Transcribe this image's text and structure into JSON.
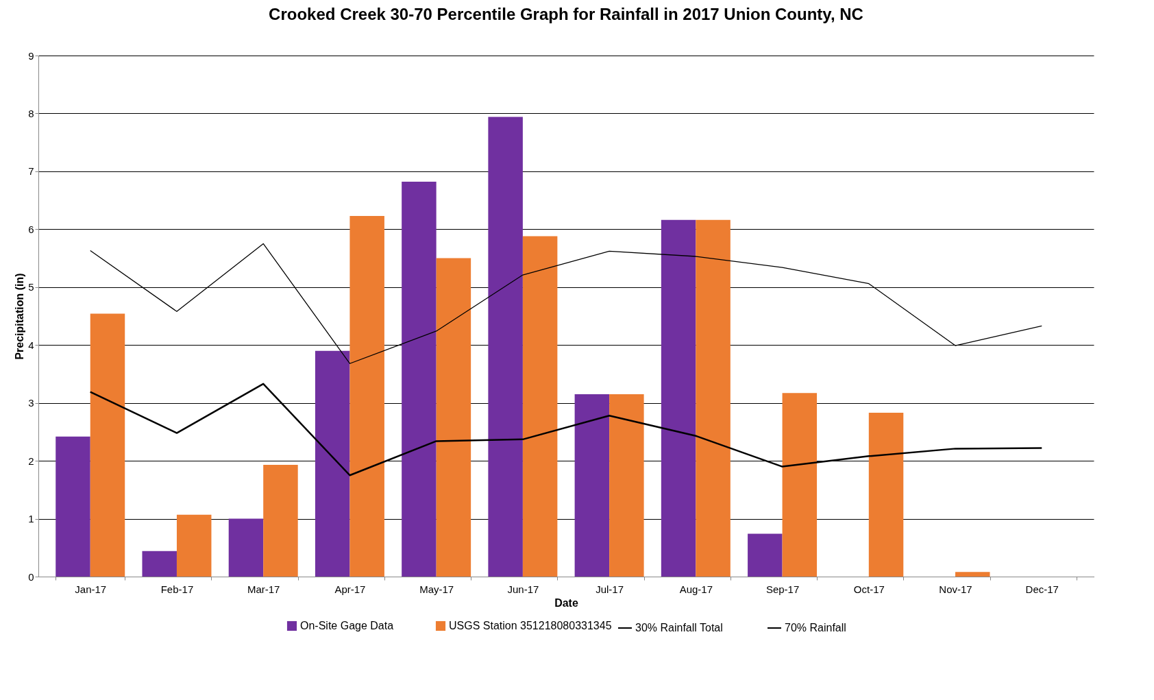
{
  "chart_data": {
    "type": "bar",
    "title": "Crooked Creek 30-70 Percentile Graph for Rainfall in 2017 Union County, NC",
    "xlabel": "Date",
    "ylabel": "Precipitation (in)",
    "categories": [
      "Jan-17",
      "Feb-17",
      "Mar-17",
      "Apr-17",
      "May-17",
      "Jun-17",
      "Jul-17",
      "Aug-17",
      "Sep-17",
      "Oct-17",
      "Nov-17",
      "Dec-17"
    ],
    "series": [
      {
        "name": "On-Site Gage Data",
        "color": "#7030a0",
        "values": [
          2.42,
          0.44,
          1.0,
          3.9,
          6.82,
          7.94,
          3.15,
          6.16,
          0.74,
          null,
          null,
          null
        ]
      },
      {
        "name": "USGS Station 351218080331345",
        "color": "#ed7d31",
        "values": [
          4.54,
          1.07,
          1.93,
          6.23,
          5.5,
          5.88,
          3.15,
          6.16,
          3.17,
          2.83,
          0.08,
          null
        ]
      },
      {
        "name": "30% Rainfall Total",
        "type": "line",
        "color": "#000000",
        "values": [
          3.19,
          2.48,
          3.33,
          1.75,
          2.34,
          2.37,
          2.78,
          2.43,
          1.9,
          2.08,
          2.21,
          2.22
        ]
      },
      {
        "name": "70% Rainfall",
        "type": "line",
        "color": "#000000",
        "values": [
          5.63,
          4.58,
          5.75,
          3.68,
          4.24,
          5.21,
          5.62,
          5.53,
          5.34,
          5.06,
          3.99,
          4.33
        ]
      }
    ],
    "ylim": [
      0,
      9
    ],
    "yticks": [
      0,
      1,
      2,
      3,
      4,
      5,
      6,
      7,
      8,
      9
    ],
    "grid": "y",
    "legend": "bottom",
    "marker": "none"
  }
}
